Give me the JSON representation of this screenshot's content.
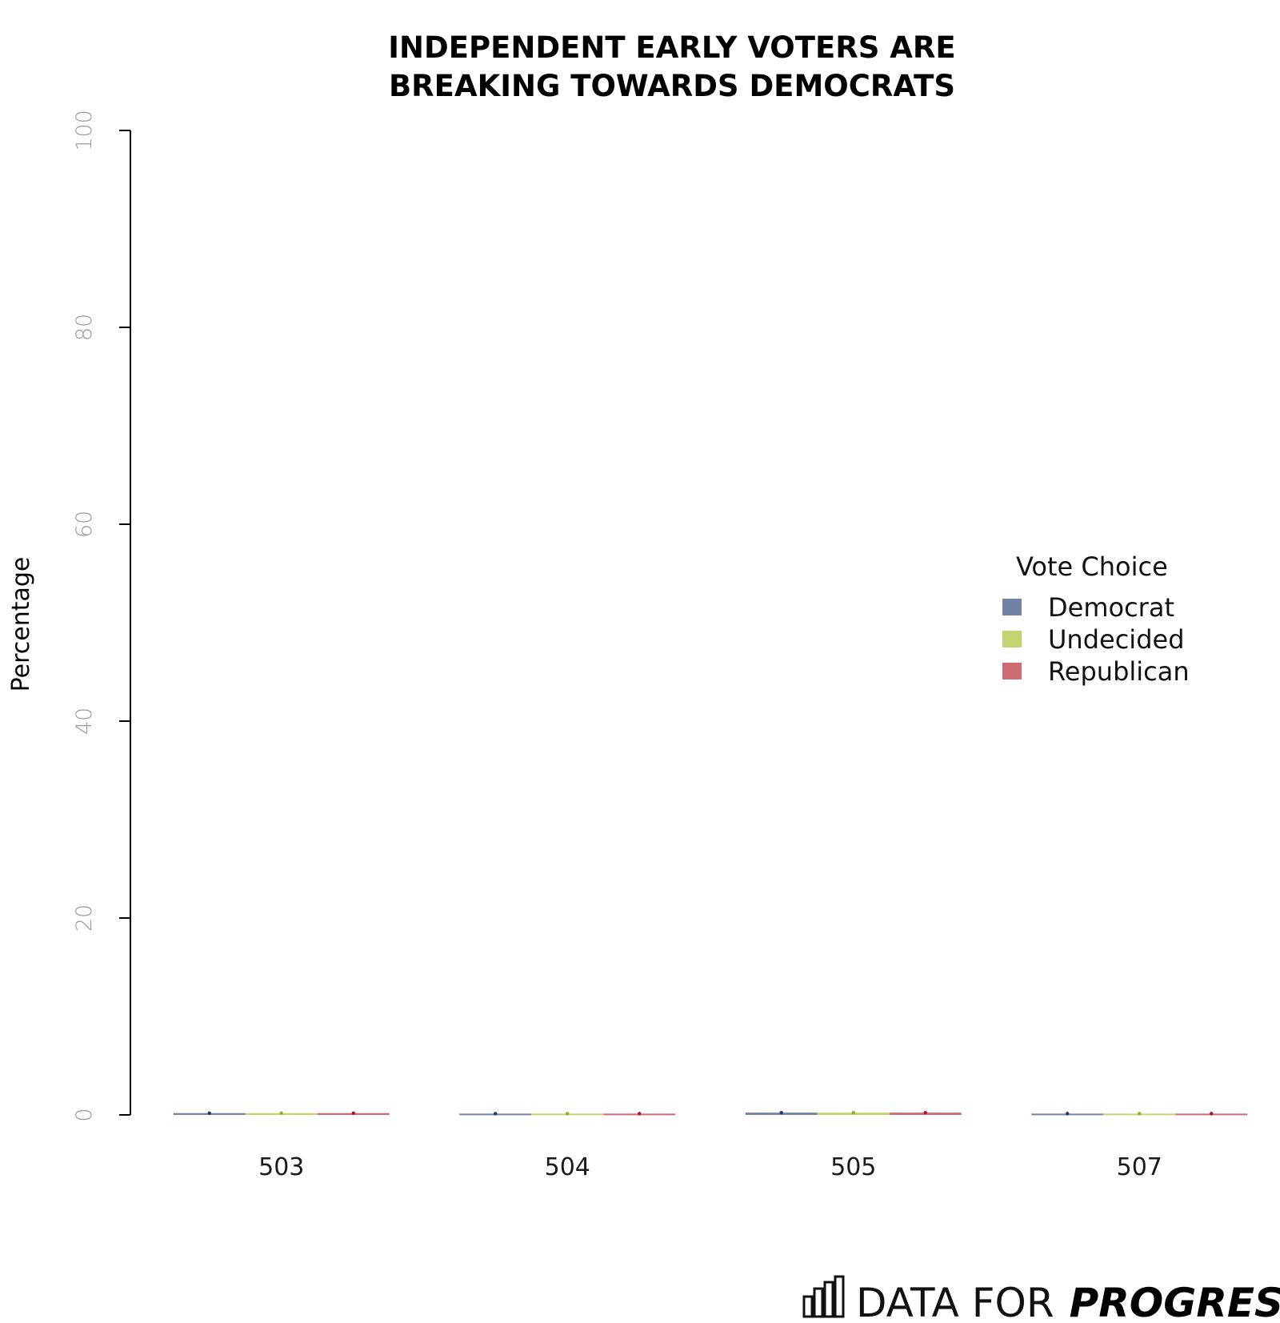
{
  "chart_data": {
    "type": "bar",
    "title": [
      "INDEPENDENT EARLY VOTERS ARE",
      "BREAKING TOWARDS DEMOCRATS"
    ],
    "ylabel": "Percentage",
    "xlabel": "",
    "ylim": [
      0,
      100
    ],
    "yticks": [
      "0",
      "20",
      "40",
      "60",
      "80",
      "100"
    ],
    "categories": [
      "503",
      "504",
      "505",
      "507"
    ],
    "legend_title": "Vote Choice",
    "legend_position": "right",
    "grid": false,
    "series": [
      {
        "name": "Democrat",
        "color": "#7282a4",
        "errcolor": "#1f3a6e",
        "values": [
          0.1,
          0.05,
          0.15,
          0.05
        ]
      },
      {
        "name": "Undecided",
        "color": "#c3d36f",
        "errcolor": "#8fb21e",
        "values": [
          0.1,
          0.05,
          0.15,
          0.05
        ]
      },
      {
        "name": "Republican",
        "color": "#d06b76",
        "errcolor": "#b5141f",
        "values": [
          0.1,
          0.05,
          0.15,
          0.05
        ]
      }
    ]
  },
  "branding": {
    "prefix": "DATA FOR",
    "bold": "PROGRESS",
    "logo_icon": "bar-chart-icon"
  }
}
